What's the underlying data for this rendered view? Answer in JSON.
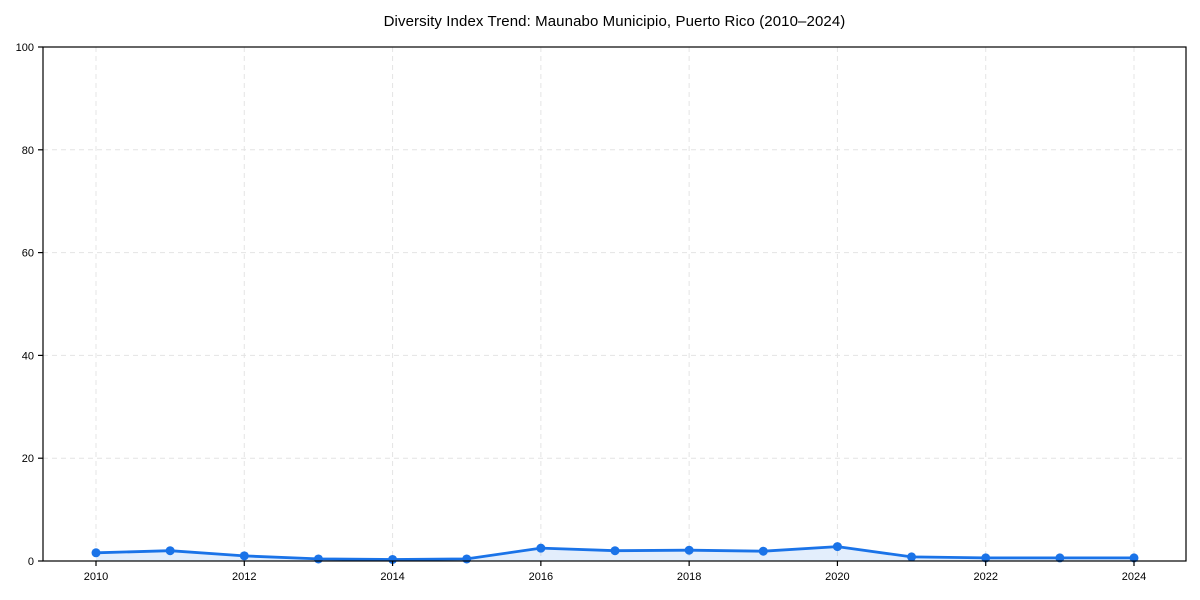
{
  "chart_data": {
    "type": "line",
    "title": "Diversity Index Trend: Maunabo Municipio, Puerto Rico (2010–2024)",
    "x": [
      2010,
      2011,
      2012,
      2013,
      2014,
      2015,
      2016,
      2017,
      2018,
      2019,
      2020,
      2021,
      2022,
      2023,
      2024
    ],
    "series": [
      {
        "name": "Diversity Index",
        "values": [
          1.6,
          2.0,
          1.0,
          0.4,
          0.3,
          0.4,
          2.5,
          2.0,
          2.1,
          1.9,
          2.8,
          0.8,
          0.6,
          0.6,
          0.6
        ]
      }
    ],
    "xlabel": "",
    "ylabel": "",
    "ylim": [
      0,
      100
    ],
    "yticks": [
      0,
      20,
      40,
      60,
      80,
      100
    ],
    "xticks": [
      2010,
      2012,
      2014,
      2016,
      2018,
      2020,
      2022,
      2024
    ],
    "grid": true,
    "grid_style": "dashed",
    "legend_position": "none",
    "marker": "circle",
    "area_fill": true,
    "colors": {
      "line": "#1a73e8",
      "marker": "#1a73e8",
      "fill": "rgba(26,115,232,0.12)",
      "grid": "#e4e4e4",
      "axis": "#000000",
      "text": "#000000",
      "background": "#ffffff"
    }
  }
}
